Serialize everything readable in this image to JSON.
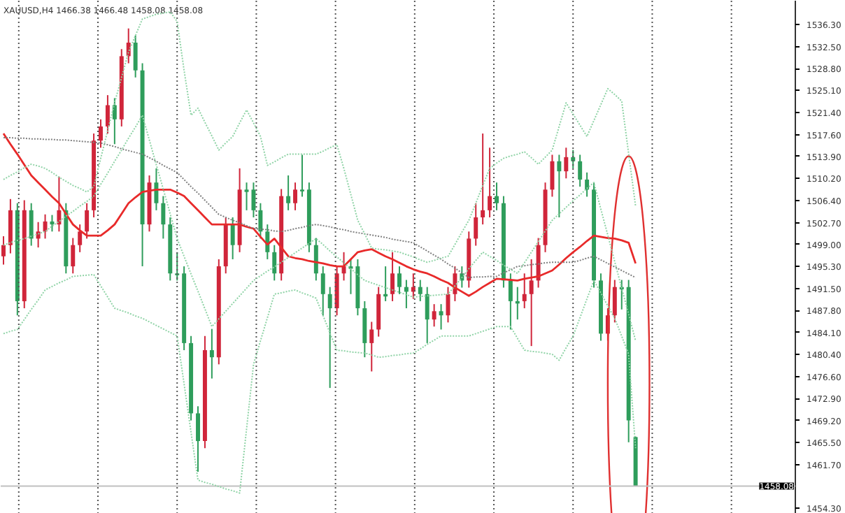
{
  "chart_data": {
    "type": "candlestick",
    "title": "XAUUSD,H4 1466.38 1466.48 1458.08 1458.08",
    "categories": [
      null,
      null,
      null,
      null,
      null,
      null,
      null,
      null,
      null,
      null,
      null,
      null,
      null,
      null,
      null,
      null,
      null,
      null,
      null,
      null,
      null,
      null,
      null,
      null,
      null,
      null,
      null,
      null,
      null,
      null,
      null,
      null,
      null,
      null,
      null,
      null,
      null,
      null,
      null,
      null,
      null,
      null,
      null,
      null,
      null,
      null,
      null,
      null,
      null,
      null,
      null,
      null,
      null,
      null,
      null,
      null,
      null,
      null,
      null,
      null,
      null,
      null,
      null,
      null,
      null,
      null,
      null,
      null,
      null,
      null,
      null,
      null,
      null,
      null,
      null,
      null,
      null,
      null,
      null,
      null,
      null,
      null,
      null,
      null,
      null,
      null,
      null,
      null,
      null,
      null,
      null,
      null
    ],
    "ohlc": [
      [
        1497.0,
        1500.4,
        1495.6,
        1498.9
      ],
      [
        1498.9,
        1506.7,
        1497.5,
        1504.8
      ],
      [
        1504.8,
        1506.0,
        1487.0,
        1489.4
      ],
      [
        1489.4,
        1506.5,
        1488.2,
        1504.8
      ],
      [
        1504.8,
        1506.0,
        1498.8,
        1500.0
      ],
      [
        1500.0,
        1502.8,
        1498.5,
        1501.2
      ],
      [
        1501.2,
        1504.1,
        1500.0,
        1502.9
      ],
      [
        1502.9,
        1504.0,
        1501.2,
        1502.4
      ],
      [
        1502.4,
        1510.5,
        1501.2,
        1504.8
      ],
      [
        1504.8,
        1506.0,
        1494.1,
        1495.3
      ],
      [
        1495.3,
        1500.1,
        1494.1,
        1498.9
      ],
      [
        1498.9,
        1502.4,
        1497.7,
        1501.2
      ],
      [
        1501.2,
        1506.0,
        1500.0,
        1504.8
      ],
      [
        1504.8,
        1517.8,
        1503.6,
        1516.6
      ],
      [
        1516.6,
        1520.2,
        1515.4,
        1519.0
      ],
      [
        1519.0,
        1524.3,
        1517.8,
        1522.6
      ],
      [
        1522.6,
        1523.8,
        1516.0,
        1520.2
      ],
      [
        1520.2,
        1532.1,
        1519.0,
        1530.9
      ],
      [
        1530.9,
        1535.6,
        1529.7,
        1533.2
      ],
      [
        1533.2,
        1534.4,
        1527.3,
        1528.5
      ],
      [
        1528.5,
        1529.7,
        1495.3,
        1502.4
      ],
      [
        1502.4,
        1510.7,
        1501.2,
        1509.5
      ],
      [
        1509.5,
        1511.9,
        1504.8,
        1506.0
      ],
      [
        1506.0,
        1507.2,
        1500.0,
        1502.4
      ],
      [
        1502.4,
        1503.6,
        1492.9,
        1494.1
      ],
      [
        1494.1,
        1497.7,
        1492.9,
        1493.8
      ],
      [
        1494.1,
        1495.3,
        1481.1,
        1482.3
      ],
      [
        1482.3,
        1483.5,
        1469.2,
        1470.4
      ],
      [
        1470.4,
        1471.6,
        1460.5,
        1465.7
      ],
      [
        1465.7,
        1483.5,
        1464.5,
        1481.1
      ],
      [
        1481.1,
        1484.7,
        1476.3,
        1479.9
      ],
      [
        1479.9,
        1496.5,
        1478.7,
        1495.3
      ],
      [
        1495.3,
        1503.6,
        1494.1,
        1502.4
      ],
      [
        1502.4,
        1503.6,
        1496.5,
        1498.9
      ],
      [
        1498.9,
        1511.9,
        1497.7,
        1508.3
      ],
      [
        1508.3,
        1509.5,
        1504.8,
        1507.9
      ],
      [
        1508.3,
        1509.5,
        1503.6,
        1504.8
      ],
      [
        1504.8,
        1506.0,
        1500.0,
        1501.2
      ],
      [
        1501.2,
        1502.4,
        1496.5,
        1497.7
      ],
      [
        1497.7,
        1498.9,
        1492.9,
        1494.1
      ],
      [
        1494.1,
        1508.4,
        1492.9,
        1507.2
      ],
      [
        1507.2,
        1510.7,
        1504.8,
        1506.0
      ],
      [
        1506.0,
        1509.5,
        1504.8,
        1508.3
      ],
      [
        1508.3,
        1514.2,
        1507.1,
        1508.0
      ],
      [
        1508.3,
        1509.5,
        1497.7,
        1498.9
      ],
      [
        1498.9,
        1500.1,
        1492.9,
        1494.1
      ],
      [
        1494.1,
        1495.3,
        1487.0,
        1490.6
      ],
      [
        1490.6,
        1491.8,
        1474.7,
        1488.2
      ],
      [
        1488.2,
        1495.3,
        1487.0,
        1494.1
      ],
      [
        1494.1,
        1497.7,
        1492.9,
        1495.3
      ],
      [
        1495.3,
        1496.5,
        1490.6,
        1494.9
      ],
      [
        1495.3,
        1496.5,
        1487.0,
        1488.2
      ],
      [
        1488.2,
        1489.4,
        1479.9,
        1482.3
      ],
      [
        1482.3,
        1485.9,
        1477.5,
        1484.6
      ],
      [
        1484.6,
        1491.8,
        1483.4,
        1490.6
      ],
      [
        1490.6,
        1495.3,
        1489.4,
        1490.2
      ],
      [
        1490.6,
        1497.7,
        1489.4,
        1494.1
      ],
      [
        1494.1,
        1495.3,
        1490.6,
        1491.8
      ],
      [
        1491.8,
        1493.0,
        1488.2,
        1491.0
      ],
      [
        1491.0,
        1494.1,
        1489.8,
        1491.8
      ],
      [
        1491.8,
        1493.0,
        1489.4,
        1490.6
      ],
      [
        1490.6,
        1491.8,
        1482.3,
        1486.3
      ],
      [
        1486.3,
        1488.9,
        1485.1,
        1487.7
      ],
      [
        1487.7,
        1488.9,
        1484.6,
        1487.0
      ],
      [
        1487.0,
        1491.8,
        1485.8,
        1490.6
      ],
      [
        1490.6,
        1495.3,
        1489.4,
        1494.1
      ],
      [
        1494.1,
        1495.3,
        1491.7,
        1492.9
      ],
      [
        1492.9,
        1501.2,
        1491.7,
        1500.0
      ],
      [
        1500.0,
        1506.0,
        1498.8,
        1503.6
      ],
      [
        1503.6,
        1517.8,
        1502.4,
        1504.8
      ],
      [
        1504.8,
        1515.4,
        1503.6,
        1507.2
      ],
      [
        1507.2,
        1509.5,
        1504.8,
        1506.0
      ],
      [
        1506.0,
        1507.2,
        1491.7,
        1492.9
      ],
      [
        1492.9,
        1494.1,
        1484.6,
        1489.4
      ],
      [
        1489.4,
        1491.8,
        1486.3,
        1489.0
      ],
      [
        1489.4,
        1494.1,
        1488.2,
        1490.6
      ],
      [
        1490.6,
        1496.5,
        1481.8,
        1492.9
      ],
      [
        1492.9,
        1500.1,
        1491.7,
        1498.9
      ],
      [
        1498.9,
        1509.5,
        1497.7,
        1508.3
      ],
      [
        1508.3,
        1514.2,
        1507.1,
        1513.1
      ],
      [
        1513.1,
        1514.2,
        1503.6,
        1511.4
      ],
      [
        1511.4,
        1515.4,
        1510.2,
        1513.8
      ],
      [
        1513.8,
        1515.0,
        1511.9,
        1513.1
      ],
      [
        1513.1,
        1514.2,
        1508.8,
        1510.0
      ],
      [
        1510.0,
        1511.2,
        1507.1,
        1508.3
      ],
      [
        1508.3,
        1509.5,
        1491.7,
        1492.9
      ],
      [
        1492.9,
        1494.1,
        1482.7,
        1483.9
      ],
      [
        1483.9,
        1488.2,
        1482.7,
        1487.0
      ],
      [
        1487.0,
        1493.0,
        1485.8,
        1491.8
      ],
      [
        1491.8,
        1493.0,
        1488.0,
        1491.4
      ],
      [
        1491.8,
        1493.0,
        1465.5,
        1469.2
      ],
      [
        1466.38,
        1466.48,
        1458.08,
        1458.08
      ]
    ],
    "colors": [
      "#d0253a",
      "#d0253a",
      "#2e9d5b",
      "#d0253a",
      "#2e9d5b",
      "#d0253a",
      "#d0253a",
      "#2e9d5b",
      "#d0253a",
      "#2e9d5b",
      "#d0253a",
      "#d0253a",
      "#d0253a",
      "#d0253a",
      "#d0253a",
      "#d0253a",
      "#2e9d5b",
      "#d0253a",
      "#d0253a",
      "#2e9d5b",
      "#2e9d5b",
      "#d0253a",
      "#2e9d5b",
      "#2e9d5b",
      "#2e9d5b",
      "#2e9d5b",
      "#2e9d5b",
      "#2e9d5b",
      "#2e9d5b",
      "#d0253a",
      "#2e9d5b",
      "#d0253a",
      "#d0253a",
      "#2e9d5b",
      "#d0253a",
      "#2e9d5b",
      "#2e9d5b",
      "#2e9d5b",
      "#2e9d5b",
      "#2e9d5b",
      "#d0253a",
      "#2e9d5b",
      "#d0253a",
      "#2e9d5b",
      "#2e9d5b",
      "#2e9d5b",
      "#2e9d5b",
      "#2e9d5b",
      "#d0253a",
      "#d0253a",
      "#2e9d5b",
      "#2e9d5b",
      "#2e9d5b",
      "#d0253a",
      "#d0253a",
      "#2e9d5b",
      "#d0253a",
      "#2e9d5b",
      "#2e9d5b",
      "#d0253a",
      "#2e9d5b",
      "#2e9d5b",
      "#d0253a",
      "#2e9d5b",
      "#d0253a",
      "#d0253a",
      "#2e9d5b",
      "#d0253a",
      "#d0253a",
      "#d0253a",
      "#d0253a",
      "#2e9d5b",
      "#2e9d5b",
      "#2e9d5b",
      "#2e9d5b",
      "#d0253a",
      "#d0253a",
      "#d0253a",
      "#d0253a",
      "#d0253a",
      "#2e9d5b",
      "#d0253a",
      "#2e9d5b",
      "#2e9d5b",
      "#2e9d5b",
      "#2e9d5b",
      "#2e9d5b",
      "#d0253a",
      "#d0253a",
      "#2e9d5b",
      "#2e9d5b",
      "#2e9d5b"
    ],
    "series": [
      {
        "type": "line",
        "color": "#e82a2a",
        "line_style": "solid",
        "values": [
          1517.8,
          1516.0,
          1514.3,
          1512.5,
          1510.7,
          1509.5,
          1508.3,
          1507.1,
          1506.0,
          1504.2,
          1502.4,
          1501.4,
          1500.5,
          1500.5,
          1500.5,
          1501.4,
          1502.4,
          1504.2,
          1506.0,
          1507.0,
          1507.9,
          1508.1,
          1508.3,
          1508.3,
          1508.3,
          1507.8,
          1507.2,
          1506.0,
          1504.8,
          1503.6,
          1502.4,
          1502.4,
          1502.4,
          1502.4,
          1502.4,
          1502.0,
          1501.7,
          1500.3,
          1499.0,
          1500.0,
          1498.5,
          1497.0,
          1496.7,
          1496.5,
          1496.2,
          1496.0,
          1495.8,
          1495.5,
          1495.3,
          1495.3,
          1496.5,
          1497.7,
          1498.0,
          1498.2,
          1497.6,
          1497.0,
          1496.5,
          1495.9,
          1495.3,
          1494.8,
          1494.4,
          1494.1,
          1493.6,
          1493.0,
          1492.5,
          1491.7,
          1491.0,
          1490.3,
          1491.0,
          1491.8,
          1492.5,
          1493.2,
          1493.1,
          1493.0,
          1492.9,
          1493.2,
          1493.4,
          1493.6,
          1494.1,
          1494.6,
          1495.6,
          1496.7,
          1497.7,
          1498.6,
          1499.6,
          1500.5,
          1500.3,
          1500.1,
          1500.0,
          1499.7,
          1499.3,
          1495.8
        ]
      },
      {
        "type": "line",
        "color": "#7f7f7f",
        "line_style": "dotted",
        "values": [
          1517.1,
          1517.1,
          1517.0,
          1517.0,
          1516.9,
          1516.9,
          1516.8,
          1516.8,
          1516.7,
          1516.7,
          1516.6,
          1516.5,
          1516.4,
          1516.3,
          1516.2,
          1515.9,
          1515.6,
          1515.2,
          1514.9,
          1514.6,
          1514.3,
          1513.7,
          1513.1,
          1512.4,
          1511.8,
          1511.2,
          1510.0,
          1508.8,
          1507.7,
          1506.5,
          1505.3,
          1504.1,
          1503.6,
          1503.1,
          1502.7,
          1502.2,
          1501.7,
          1501.6,
          1501.5,
          1501.3,
          1501.2,
          1501.4,
          1501.7,
          1501.9,
          1502.2,
          1502.4,
          1502.2,
          1502.0,
          1501.7,
          1501.5,
          1501.2,
          1501.0,
          1500.8,
          1500.6,
          1500.4,
          1500.2,
          1499.9,
          1499.7,
          1499.5,
          1499.3,
          1498.6,
          1497.9,
          1497.2,
          1496.5,
          1495.7,
          1495.0,
          1494.2,
          1493.4,
          1493.5,
          1493.5,
          1493.6,
          1493.6,
          1494.2,
          1494.7,
          1495.3,
          1495.4,
          1495.6,
          1495.7,
          1495.9,
          1496.0,
          1496.0,
          1496.0,
          1496.0,
          1496.3,
          1496.7,
          1497.0,
          1496.4,
          1495.8,
          1495.2,
          1494.6,
          1494.0,
          1493.4
        ]
      },
      {
        "type": "line",
        "color": "#8fd3a6",
        "line_style": "dotted",
        "values": [
          1510.0,
          1510.7,
          1511.3,
          1512.0,
          1512.6,
          1512.3,
          1511.9,
          1511.2,
          1510.4,
          1509.7,
          1509.0,
          1508.5,
          1507.9,
          1508.8,
          1513.6,
          1518.3,
          1523.0,
          1527.3,
          1531.6,
          1534.4,
          1537.2,
          1537.6,
          1538.0,
          1538.2,
          1538.4,
          1536.8,
          1528.5,
          1520.9,
          1522.1,
          1519.7,
          1517.4,
          1515.0,
          1516.2,
          1517.3,
          1519.6,
          1521.8,
          1519.6,
          1517.3,
          1512.4,
          1513.0,
          1513.7,
          1514.3,
          1514.3,
          1514.3,
          1514.3,
          1514.3,
          1514.8,
          1515.4,
          1515.9,
          1511.9,
          1507.5,
          1503.1,
          1500.8,
          1498.4,
          1498.2,
          1498.1,
          1497.9,
          1497.7,
          1497.3,
          1496.9,
          1496.4,
          1496.0,
          1496.3,
          1496.7,
          1497.0,
          1499.0,
          1501.1,
          1503.1,
          1506.0,
          1509.0,
          1511.9,
          1512.8,
          1513.6,
          1514.0,
          1514.3,
          1514.7,
          1513.7,
          1512.6,
          1513.8,
          1515.0,
          1519.0,
          1523.0,
          1521.1,
          1519.2,
          1517.3,
          1520.0,
          1522.7,
          1525.4,
          1524.4,
          1523.3,
          1514.4,
          1505.5
        ]
      },
      {
        "type": "line",
        "color": "#8fd3a6",
        "line_style": "dotted",
        "values": [
          1498.9,
          1499.3,
          1499.7,
          1500.0,
          1500.4,
          1500.8,
          1501.2,
          1502.1,
          1502.9,
          1503.8,
          1504.6,
          1505.5,
          1506.3,
          1507.2,
          1509.2,
          1511.1,
          1513.1,
          1515.0,
          1517.0,
          1518.9,
          1520.9,
          1516.7,
          1512.5,
          1508.4,
          1504.2,
          1500.0,
          1497.0,
          1494.0,
          1491.1,
          1488.1,
          1485.1,
          1486.4,
          1487.7,
          1489.0,
          1490.3,
          1491.6,
          1492.9,
          1493.7,
          1494.5,
          1495.2,
          1496.0,
          1496.8,
          1497.6,
          1498.4,
          1499.2,
          1500.0,
          1499.0,
          1497.9,
          1496.9,
          1495.9,
          1494.9,
          1493.9,
          1492.9,
          1492.5,
          1492.1,
          1491.7,
          1491.3,
          1490.9,
          1490.5,
          1490.1,
          1490.2,
          1490.3,
          1490.4,
          1490.5,
          1490.6,
          1492.0,
          1493.4,
          1494.9,
          1496.3,
          1497.7,
          1497.0,
          1496.3,
          1495.5,
          1494.8,
          1494.1,
          1495.9,
          1497.7,
          1499.5,
          1501.3,
          1503.1,
          1504.2,
          1505.3,
          1506.4,
          1507.4,
          1508.5,
          1509.5,
          1505.0,
          1500.6,
          1496.1,
          1491.6,
          1487.2,
          1482.7
        ]
      },
      {
        "type": "line",
        "color": "#8fd3a6",
        "line_style": "dotted",
        "values": [
          1483.9,
          1484.3,
          1484.6,
          1486.3,
          1488.0,
          1489.6,
          1491.3,
          1491.9,
          1492.5,
          1493.0,
          1493.6,
          1493.7,
          1493.8,
          1493.9,
          1492.0,
          1490.1,
          1488.2,
          1487.8,
          1487.4,
          1486.9,
          1486.5,
          1485.9,
          1485.3,
          1484.7,
          1484.1,
          1483.5,
          1475.4,
          1467.2,
          1459.1,
          1458.7,
          1458.4,
          1458.0,
          1457.6,
          1457.3,
          1456.9,
          1467.8,
          1478.7,
          1482.7,
          1486.6,
          1490.6,
          1490.8,
          1491.1,
          1491.3,
          1490.8,
          1490.4,
          1489.9,
          1487.0,
          1484.0,
          1481.1,
          1481.0,
          1480.8,
          1480.7,
          1480.6,
          1480.3,
          1479.9,
          1480.0,
          1480.2,
          1480.3,
          1480.5,
          1480.6,
          1481.3,
          1482.1,
          1482.8,
          1483.5,
          1483.5,
          1483.5,
          1483.5,
          1483.5,
          1483.9,
          1484.3,
          1484.7,
          1485.1,
          1485.1,
          1485.1,
          1483.1,
          1481.1,
          1480.9,
          1480.8,
          1480.6,
          1480.4,
          1479.4,
          1481.5,
          1483.5,
          1486.6,
          1489.8,
          1492.9,
          1490.8,
          1488.6,
          1486.5,
          1483.5,
          1480.4,
          1464.5
        ]
      }
    ],
    "ylim": [
      1453.4,
      1540.3
    ],
    "yticks": [
      {
        "value": 1536.3,
        "label": "1536.30"
      },
      {
        "value": 1532.5,
        "label": "1532.50"
      },
      {
        "value": 1528.8,
        "label": "1528.80"
      },
      {
        "value": 1525.1,
        "label": "1525.10"
      },
      {
        "value": 1521.4,
        "label": "1521.40"
      },
      {
        "value": 1517.6,
        "label": "1517.60"
      },
      {
        "value": 1513.9,
        "label": "1513.90"
      },
      {
        "value": 1510.2,
        "label": "1510.20"
      },
      {
        "value": 1506.4,
        "label": "1506.40"
      },
      {
        "value": 1502.7,
        "label": "1502.70"
      },
      {
        "value": 1499.0,
        "label": "1499.00"
      },
      {
        "value": 1495.3,
        "label": "1495.30"
      },
      {
        "value": 1491.5,
        "label": "1491.50"
      },
      {
        "value": 1487.8,
        "label": "1487.80"
      },
      {
        "value": 1484.1,
        "label": "1484.10"
      },
      {
        "value": 1480.4,
        "label": "1480.40"
      },
      {
        "value": 1476.6,
        "label": "1476.60"
      },
      {
        "value": 1472.9,
        "label": "1472.90"
      },
      {
        "value": 1469.2,
        "label": "1469.20"
      },
      {
        "value": 1465.5,
        "label": "1465.50"
      },
      {
        "value": 1461.7,
        "label": "1461.70"
      },
      {
        "value": 1454.3,
        "label": "1454.30"
      }
    ],
    "ref_lines": [
      {
        "axis": "y",
        "value": 1458.08,
        "label": "1458.08",
        "color": "#c0c0c0",
        "line_style": "solid"
      }
    ],
    "tick_labels": "y",
    "grid": false
  }
}
